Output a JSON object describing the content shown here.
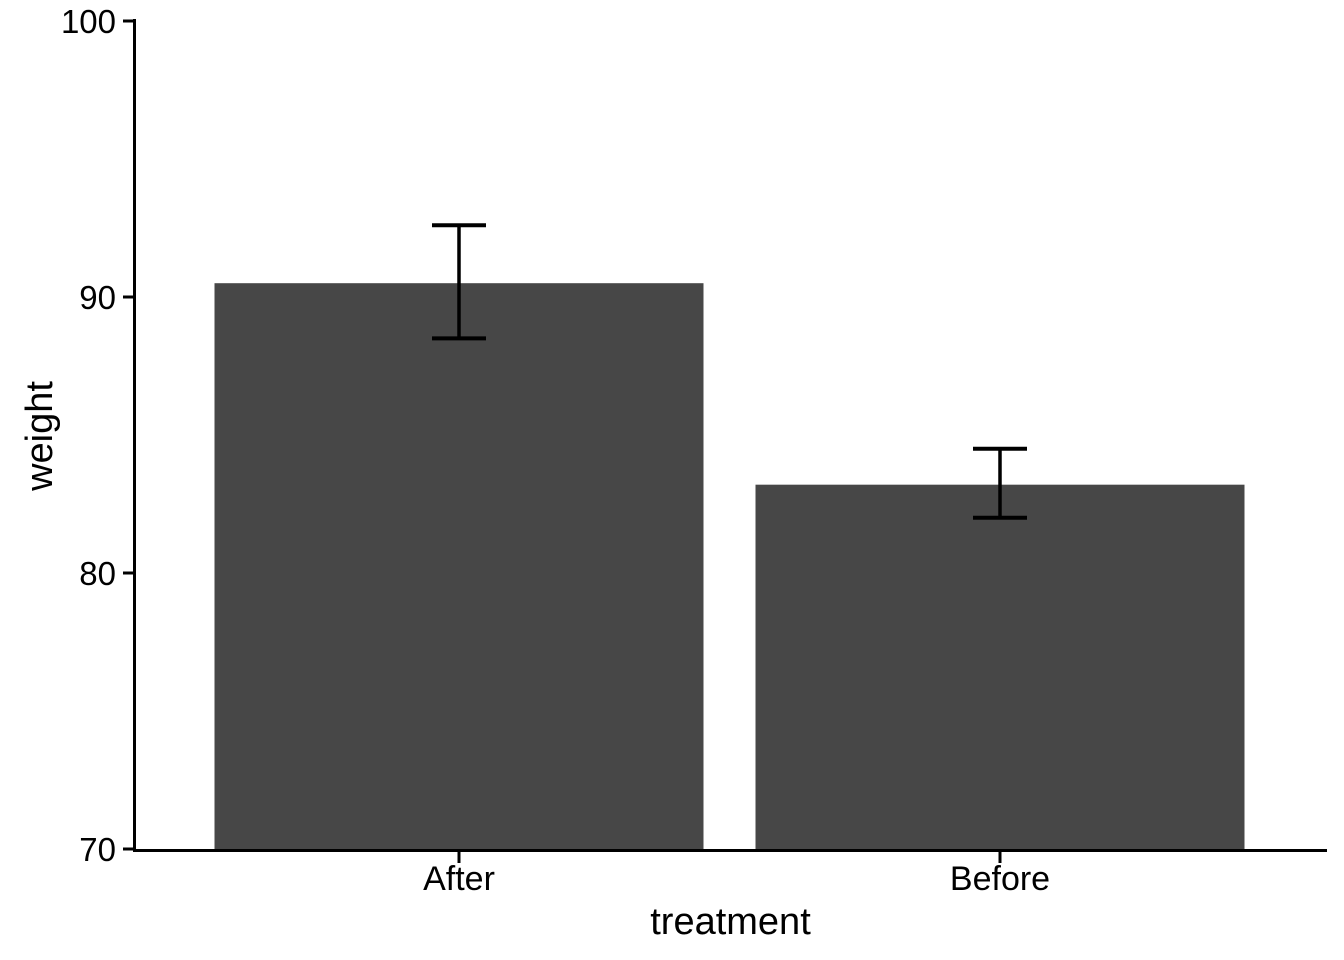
{
  "figure": {
    "background": "#ffffff"
  },
  "chart_data": {
    "type": "bar",
    "title": "",
    "xlabel": "treatment",
    "ylabel": "weight",
    "categories": [
      "After",
      "Before"
    ],
    "values": [
      90.5,
      83.2
    ],
    "error_bars": {
      "low": [
        88.5,
        82.0
      ],
      "high": [
        92.6,
        84.5
      ]
    },
    "ylim": [
      70,
      100
    ],
    "yticks": [
      70,
      80,
      90,
      100
    ],
    "grid": false,
    "legend": "none",
    "bar_color": "#474747",
    "axis_color": "#000000",
    "text_color": "#000000"
  }
}
